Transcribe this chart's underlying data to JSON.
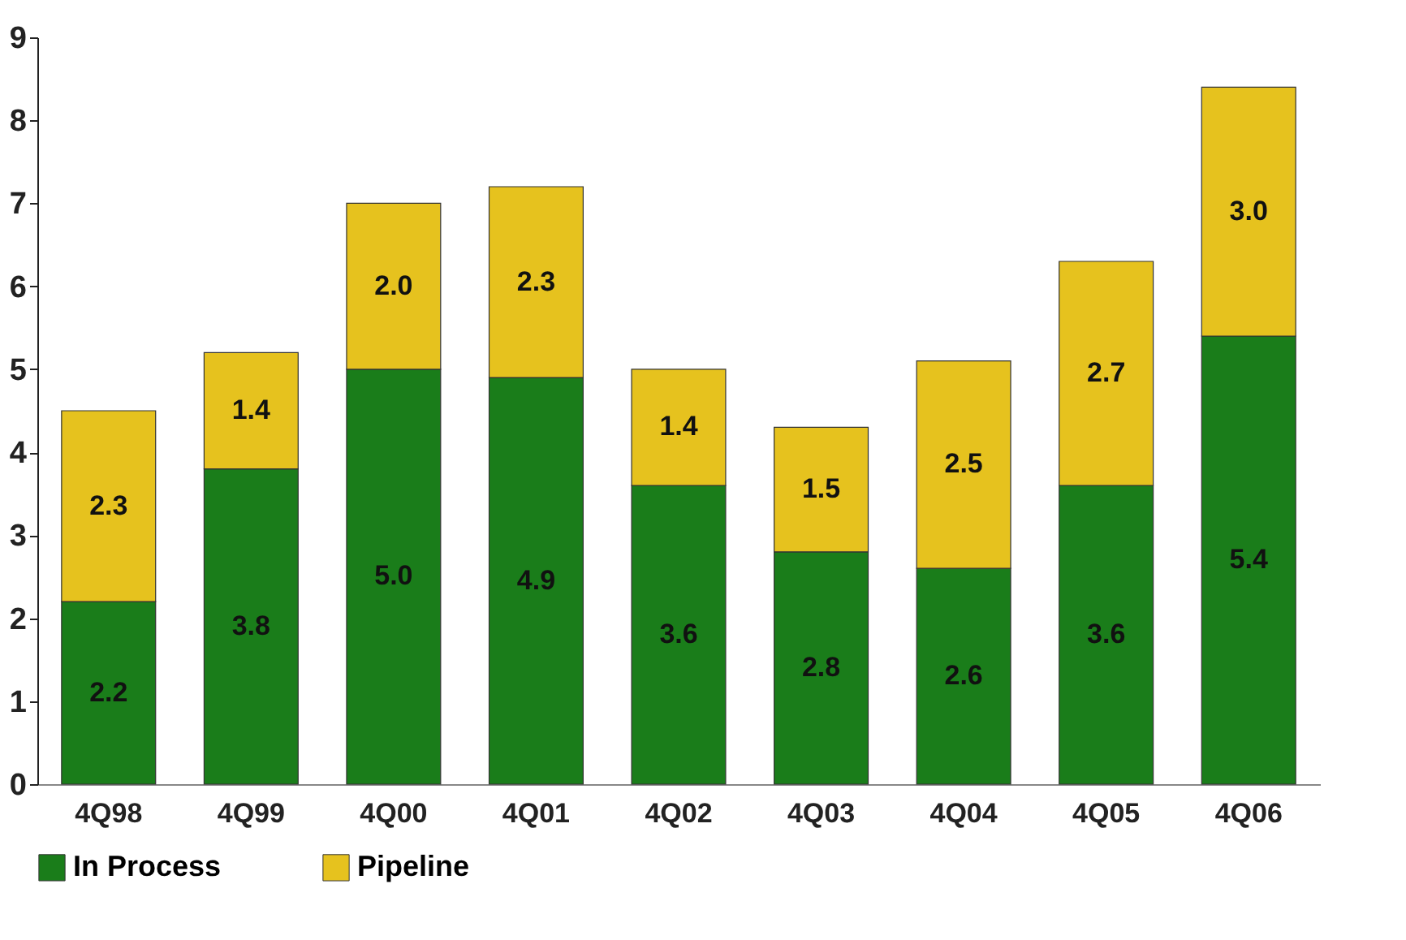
{
  "chart_data": {
    "type": "bar",
    "stacked": true,
    "categories": [
      "4Q98",
      "4Q99",
      "4Q00",
      "4Q01",
      "4Q02",
      "4Q03",
      "4Q04",
      "4Q05",
      "4Q06"
    ],
    "series": [
      {
        "name": "In Process",
        "color": "#1a7d1a",
        "values": [
          2.2,
          3.8,
          5.0,
          4.9,
          3.6,
          2.8,
          2.6,
          3.6,
          5.4
        ],
        "value_labels": [
          "2.2",
          "3.8",
          "5.0",
          "4.9",
          "3.6",
          "2.8",
          "2.6",
          "3.6",
          "5.4"
        ]
      },
      {
        "name": "Pipeline",
        "color": "#e6c21e",
        "values": [
          2.3,
          1.4,
          2.0,
          2.3,
          1.4,
          1.5,
          2.5,
          2.7,
          3.0
        ],
        "value_labels": [
          "2.3",
          "1.4",
          "2.0",
          "2.3",
          "1.4",
          "1.5",
          "2.5",
          "2.7",
          "3.0"
        ]
      }
    ],
    "ylim": [
      0,
      9
    ],
    "yticks": [
      0,
      1,
      2,
      3,
      4,
      5,
      6,
      7,
      8,
      9
    ],
    "grid": false,
    "legend": "bottom"
  }
}
